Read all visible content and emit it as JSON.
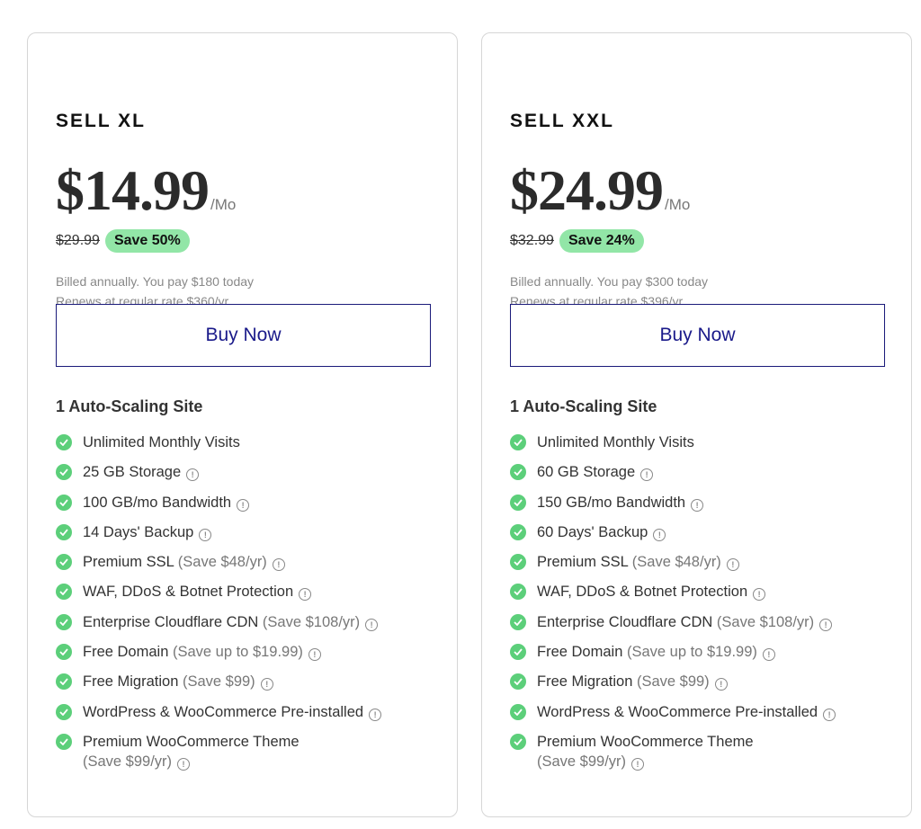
{
  "plans": [
    {
      "name": "SELL XL",
      "price": "$14.99",
      "per": "/Mo",
      "old_price": "$29.99",
      "save": "Save 50%",
      "billed": "Billed annually. You pay $180 today",
      "renews": "Renews at regular rate $360/yr",
      "button": "Buy Now",
      "sites": "1 Auto-Scaling Site",
      "features": [
        {
          "text": "Unlimited Monthly Visits",
          "note": "",
          "info": false
        },
        {
          "text": "25 GB Storage",
          "note": "",
          "info": true
        },
        {
          "text": "100 GB/mo Bandwidth",
          "note": "",
          "info": true
        },
        {
          "text": "14 Days' Backup",
          "note": "",
          "info": true
        },
        {
          "text": "Premium SSL",
          "note": "(Save $48/yr)",
          "info": true
        },
        {
          "text": "WAF, DDoS & Botnet Protection",
          "note": "",
          "info": true
        },
        {
          "text": "Enterprise Cloudflare CDN",
          "note": "(Save $108/yr)",
          "info": true
        },
        {
          "text": "Free Domain",
          "note": "(Save up to $19.99)",
          "info": true
        },
        {
          "text": "Free Migration",
          "note": "(Save $99)",
          "info": true
        },
        {
          "text": "WordPress & WooCommerce Pre-installed",
          "note": "",
          "info": true
        },
        {
          "text": "Premium WooCommerce Theme",
          "note": "(Save $99/yr)",
          "info": true
        }
      ]
    },
    {
      "name": "SELL XXL",
      "price": "$24.99",
      "per": "/Mo",
      "old_price": "$32.99",
      "save": "Save 24%",
      "billed": "Billed annually. You pay $300 today",
      "renews": "Renews at regular rate $396/yr",
      "button": "Buy Now",
      "sites": "1 Auto-Scaling Site",
      "features": [
        {
          "text": "Unlimited Monthly Visits",
          "note": "",
          "info": false
        },
        {
          "text": "60 GB Storage",
          "note": "",
          "info": true
        },
        {
          "text": "150 GB/mo Bandwidth",
          "note": "",
          "info": true
        },
        {
          "text": "60 Days' Backup",
          "note": "",
          "info": true
        },
        {
          "text": "Premium SSL",
          "note": "(Save $48/yr)",
          "info": true
        },
        {
          "text": "WAF, DDoS & Botnet Protection",
          "note": "",
          "info": true
        },
        {
          "text": "Enterprise Cloudflare CDN",
          "note": "(Save $108/yr)",
          "info": true
        },
        {
          "text": "Free Domain",
          "note": "(Save up to $19.99)",
          "info": true
        },
        {
          "text": "Free Migration",
          "note": "(Save $99)",
          "info": true
        },
        {
          "text": "WordPress & WooCommerce Pre-installed",
          "note": "",
          "info": true
        },
        {
          "text": "Premium WooCommerce Theme",
          "note": "(Save $99/yr)",
          "info": true
        }
      ]
    }
  ],
  "colors": {
    "check": "#5ccf7a",
    "save_badge": "#92e6a7",
    "button": "#1a1a8a"
  }
}
